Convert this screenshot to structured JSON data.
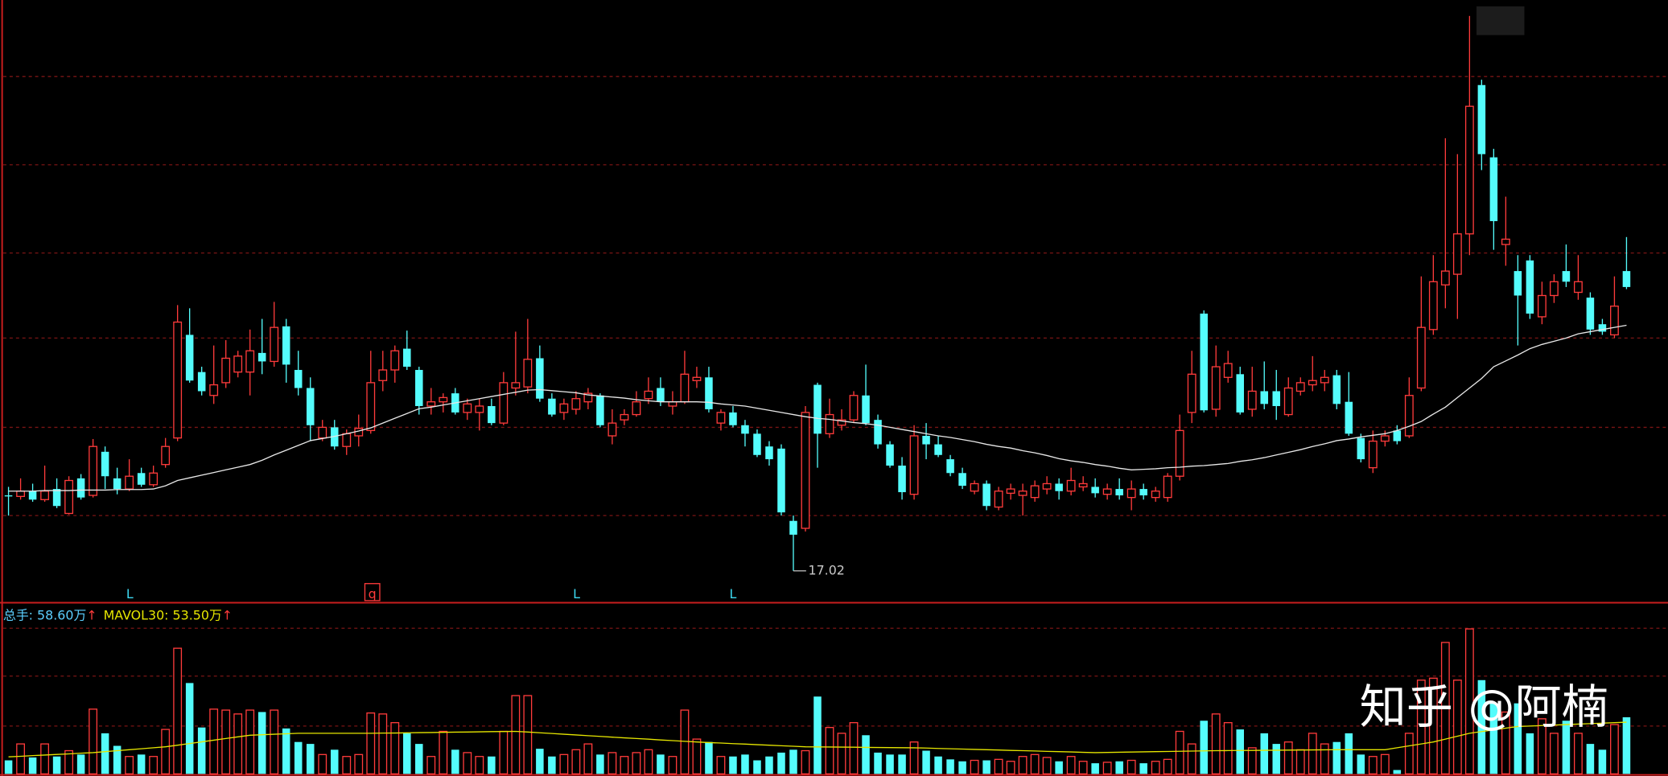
{
  "chart_data": {
    "type": "candlestick",
    "up_color": "#ff3b3b",
    "down_color": "#54fcfc",
    "ylim": [
      16.46,
      27.76
    ],
    "open": [
      18.44,
      18.42,
      18.52,
      18.36,
      18.56,
      18.1,
      18.76,
      18.44,
      19.26,
      18.76,
      18.56,
      18.86,
      18.64,
      19.02,
      19.52,
      21.46,
      20.76,
      20.32,
      20.56,
      20.76,
      20.76,
      21.12,
      20.96,
      21.62,
      20.8,
      20.46,
      19.52,
      19.72,
      19.36,
      19.56,
      19.66,
      20.6,
      20.8,
      21.2,
      20.8,
      20.12,
      20.2,
      20.36,
      20.0,
      20.0,
      20.12,
      19.8,
      20.46,
      20.48,
      21.02,
      20.26,
      20.0,
      20.06,
      20.2,
      20.32,
      19.56,
      19.86,
      19.96,
      20.26,
      20.46,
      20.12,
      20.2,
      20.6,
      20.66,
      19.8,
      20.0,
      19.76,
      19.6,
      19.36,
      19.32,
      17.96,
      17.82,
      20.52,
      19.6,
      19.76,
      19.86,
      20.32,
      19.86,
      19.4,
      19.0,
      18.46,
      19.56,
      19.4,
      19.12,
      18.86,
      18.52,
      18.66,
      18.22,
      18.48,
      18.44,
      18.4,
      18.56,
      18.66,
      18.52,
      18.6,
      18.6,
      18.46,
      18.56,
      18.4,
      18.56,
      18.4,
      18.4,
      18.8,
      20.0,
      21.86,
      20.06,
      20.66,
      20.72,
      20.06,
      20.4,
      20.4,
      19.96,
      20.4,
      20.52,
      20.56,
      20.7,
      20.2,
      19.52,
      18.96,
      19.46,
      19.66,
      19.56,
      20.46,
      21.56,
      22.4,
      22.6,
      23.36,
      26.16,
      24.8,
      23.16,
      22.66,
      22.86,
      21.8,
      22.2,
      22.66,
      22.26,
      22.16,
      21.66,
      21.46,
      22.66
    ],
    "high": [
      18.6,
      18.76,
      18.66,
      19.0,
      18.76,
      18.8,
      18.84,
      19.5,
      19.36,
      18.96,
      19.12,
      18.96,
      19.0,
      19.52,
      22.02,
      21.96,
      20.86,
      21.26,
      21.36,
      21.16,
      21.56,
      21.76,
      22.08,
      21.76,
      21.16,
      20.66,
      19.86,
      19.86,
      19.68,
      19.96,
      21.16,
      21.16,
      21.26,
      21.54,
      20.86,
      20.46,
      20.36,
      20.46,
      20.26,
      20.26,
      20.26,
      20.76,
      21.52,
      21.76,
      21.26,
      20.36,
      20.26,
      20.4,
      20.46,
      20.36,
      20.06,
      20.06,
      20.4,
      20.66,
      20.66,
      20.4,
      21.16,
      20.86,
      20.86,
      20.06,
      20.12,
      19.86,
      19.68,
      19.46,
      19.4,
      18.06,
      20.12,
      20.56,
      20.26,
      20.06,
      20.4,
      20.9,
      19.96,
      19.46,
      19.16,
      19.76,
      19.8,
      19.56,
      19.2,
      18.96,
      18.72,
      18.72,
      18.6,
      18.66,
      18.66,
      18.72,
      18.8,
      18.76,
      18.96,
      18.8,
      18.76,
      18.66,
      18.76,
      18.72,
      18.66,
      18.6,
      18.86,
      19.96,
      21.16,
      21.92,
      21.26,
      21.16,
      20.86,
      20.86,
      20.96,
      20.8,
      20.66,
      20.66,
      21.06,
      20.8,
      20.8,
      20.76,
      19.6,
      19.66,
      19.66,
      19.76,
      20.66,
      22.56,
      22.96,
      25.16,
      24.86,
      27.46,
      26.26,
      24.96,
      24.06,
      22.96,
      22.96,
      22.46,
      22.6,
      23.16,
      22.96,
      22.26,
      21.76,
      22.56,
      23.3
    ],
    "low": [
      18.06,
      18.36,
      18.32,
      18.32,
      18.2,
      18.08,
      18.36,
      18.4,
      18.56,
      18.46,
      18.52,
      18.6,
      18.6,
      18.96,
      19.46,
      20.56,
      20.32,
      20.16,
      20.46,
      20.66,
      20.32,
      20.72,
      20.86,
      20.56,
      20.32,
      19.46,
      19.46,
      19.3,
      19.2,
      19.36,
      19.6,
      20.4,
      20.56,
      20.8,
      19.96,
      19.96,
      20.0,
      19.96,
      19.86,
      19.66,
      19.76,
      19.76,
      20.32,
      20.36,
      20.2,
      19.92,
      19.86,
      19.96,
      20.06,
      19.72,
      19.4,
      19.76,
      19.92,
      20.16,
      20.12,
      19.96,
      20.16,
      20.46,
      20.0,
      19.66,
      19.72,
      19.36,
      19.16,
      19.0,
      18.06,
      17.02,
      17.76,
      18.96,
      19.52,
      19.66,
      19.8,
      19.76,
      19.32,
      18.96,
      18.36,
      18.36,
      19.12,
      19.16,
      18.8,
      18.56,
      18.46,
      18.16,
      18.16,
      18.36,
      18.06,
      18.32,
      18.46,
      18.36,
      18.44,
      18.52,
      18.4,
      18.36,
      18.36,
      18.16,
      18.36,
      18.32,
      18.32,
      18.72,
      19.8,
      20.0,
      19.92,
      20.56,
      19.96,
      19.92,
      20.06,
      19.86,
      19.92,
      20.32,
      20.4,
      20.4,
      20.06,
      19.56,
      19.06,
      18.86,
      19.36,
      19.4,
      19.52,
      20.4,
      21.46,
      21.96,
      21.76,
      22.96,
      24.56,
      23.06,
      22.76,
      21.26,
      21.76,
      21.66,
      22.06,
      22.36,
      22.12,
      21.46,
      21.46,
      21.4,
      22.32
    ],
    "close": [
      18.44,
      18.52,
      18.36,
      18.52,
      18.24,
      18.72,
      18.4,
      19.36,
      18.8,
      18.56,
      18.8,
      18.64,
      18.86,
      19.36,
      21.7,
      20.6,
      20.4,
      20.52,
      21.02,
      21.06,
      21.16,
      20.96,
      21.6,
      20.9,
      20.46,
      19.76,
      19.72,
      19.36,
      19.6,
      19.7,
      20.56,
      20.8,
      21.16,
      20.86,
      20.12,
      20.2,
      20.28,
      20.0,
      20.16,
      20.12,
      19.8,
      20.56,
      20.56,
      21.0,
      20.26,
      19.96,
      20.16,
      20.26,
      20.36,
      19.76,
      19.8,
      19.96,
      20.2,
      20.4,
      20.2,
      20.2,
      20.72,
      20.66,
      20.06,
      20.0,
      19.76,
      19.6,
      19.2,
      19.12,
      18.12,
      17.7,
      20.0,
      19.6,
      19.96,
      19.86,
      20.32,
      19.8,
      19.4,
      19.0,
      18.5,
      19.56,
      19.4,
      19.2,
      18.86,
      18.62,
      18.66,
      18.24,
      18.52,
      18.56,
      18.52,
      18.62,
      18.66,
      18.52,
      18.72,
      18.66,
      18.48,
      18.56,
      18.44,
      18.56,
      18.44,
      18.52,
      18.8,
      19.66,
      20.72,
      20.04,
      20.86,
      20.92,
      20.0,
      20.4,
      20.16,
      20.12,
      20.46,
      20.56,
      20.6,
      20.66,
      20.16,
      19.6,
      19.12,
      19.46,
      19.56,
      19.46,
      20.32,
      21.6,
      22.46,
      22.66,
      23.36,
      25.76,
      24.86,
      23.6,
      23.26,
      22.2,
      21.86,
      22.2,
      22.46,
      22.46,
      22.46,
      21.56,
      21.52,
      22.0,
      22.36
    ],
    "ma": {
      "color": "#e8e8e8",
      "values": [
        18.52,
        18.52,
        18.52,
        18.53,
        18.53,
        18.53,
        18.54,
        18.54,
        18.54,
        18.55,
        18.55,
        18.55,
        18.56,
        18.62,
        18.72,
        18.77,
        18.82,
        18.87,
        18.92,
        18.97,
        19.02,
        19.1,
        19.2,
        19.29,
        19.38,
        19.47,
        19.51,
        19.55,
        19.6,
        19.65,
        19.71,
        19.8,
        19.89,
        19.98,
        20.07,
        20.1,
        20.14,
        20.18,
        20.22,
        20.26,
        20.3,
        20.34,
        20.38,
        20.42,
        20.43,
        20.41,
        20.39,
        20.37,
        20.33,
        20.31,
        20.29,
        20.27,
        20.24,
        20.22,
        20.2,
        20.2,
        20.2,
        20.2,
        20.19,
        20.16,
        20.14,
        20.12,
        20.08,
        20.04,
        20.0,
        19.96,
        19.92,
        19.89,
        19.87,
        19.84,
        19.81,
        19.79,
        19.76,
        19.72,
        19.68,
        19.64,
        19.6,
        19.56,
        19.53,
        19.49,
        19.45,
        19.4,
        19.36,
        19.33,
        19.28,
        19.24,
        19.19,
        19.13,
        19.09,
        19.06,
        19.02,
        18.99,
        18.95,
        18.92,
        18.93,
        18.94,
        18.96,
        18.97,
        18.99,
        19.0,
        19.02,
        19.04,
        19.08,
        19.11,
        19.15,
        19.2,
        19.25,
        19.3,
        19.36,
        19.41,
        19.47,
        19.5,
        19.54,
        19.57,
        19.6,
        19.66,
        19.74,
        19.83,
        19.97,
        20.1,
        20.28,
        20.46,
        20.64,
        20.86,
        20.97,
        21.08,
        21.2,
        21.28,
        21.34,
        21.4,
        21.48,
        21.52,
        21.56,
        21.6,
        21.64
      ]
    },
    "volume": {
      "ylim": [
        0,
        151.8
      ],
      "values": [
        14,
        31,
        17,
        31,
        18,
        24,
        20,
        67,
        42,
        29,
        18,
        20,
        18,
        46,
        130,
        94,
        48,
        67,
        66,
        62,
        66,
        64,
        66,
        47,
        33,
        31,
        20,
        25,
        18,
        20,
        63,
        62,
        53,
        42,
        31,
        18,
        44,
        25,
        22,
        18,
        18,
        44,
        81,
        81,
        26,
        18,
        20,
        25,
        31,
        20,
        22,
        18,
        22,
        25,
        20,
        18,
        66,
        36,
        33,
        18,
        18,
        20,
        14,
        18,
        22,
        25,
        24,
        80,
        48,
        42,
        53,
        40,
        22,
        20,
        20,
        33,
        24,
        18,
        15,
        13,
        14,
        14,
        15,
        13,
        18,
        20,
        17,
        13,
        18,
        13,
        11,
        12,
        13,
        14,
        11,
        13,
        15,
        44,
        31,
        55,
        62,
        53,
        46,
        27,
        42,
        31,
        33,
        25,
        42,
        31,
        33,
        42,
        20,
        18,
        20,
        4,
        42,
        97,
        99,
        136,
        97,
        150,
        97,
        73,
        64,
        73,
        42,
        57,
        42,
        55,
        42,
        31,
        25,
        51,
        58.6
      ],
      "ma": {
        "color": "#e6e600",
        "values": [
          17.6,
          18.2,
          18.9,
          19.5,
          20.1,
          20.7,
          21.4,
          22.0,
          23.0,
          24.0,
          25.0,
          26.0,
          27.0,
          28.0,
          29.7,
          31.4,
          33.1,
          34.9,
          36.6,
          38.3,
          40.0,
          40.5,
          41.0,
          41.5,
          42.0,
          42,
          42,
          42,
          42,
          42,
          42,
          42.2,
          42.3,
          42.5,
          42.7,
          42.8,
          43.0,
          43.2,
          43.3,
          43.5,
          43.7,
          43.8,
          44.0,
          43.3,
          42.5,
          41.8,
          41.0,
          40.3,
          39.5,
          38.8,
          38.0,
          37.3,
          36.6,
          35.9,
          35.1,
          34.4,
          33.7,
          33.0,
          32.4,
          31.9,
          31.3,
          30.8,
          30.2,
          29.7,
          29.1,
          28.6,
          28.0,
          27.9,
          27.8,
          27.7,
          27.6,
          27.4,
          27.3,
          27.2,
          27.1,
          27.0,
          26.7,
          26.3,
          26.0,
          25.7,
          25.3,
          25.0,
          24.7,
          24.3,
          24.0,
          23.7,
          23.3,
          23.0,
          22.7,
          22.3,
          22.0,
          22.2,
          22.4,
          22.6,
          22.8,
          23.0,
          23.2,
          23.4,
          23.6,
          23.8,
          24.0,
          24.1,
          24.2,
          24.3,
          24.4,
          24.5,
          24.6,
          24.7,
          24.8,
          24.9,
          25.0,
          25,
          25,
          25,
          25,
          27,
          29,
          31,
          33,
          36,
          39,
          42,
          43.8,
          45.5,
          47.3,
          49.0,
          49.5,
          50.0,
          50.5,
          51.0,
          51.5,
          52.0,
          52.5,
          53.0,
          53.5
        ]
      },
      "label": "总手: 58.60万",
      "ma_label": "MAVOL30: 53.50万",
      "arrow": "↑"
    },
    "markers": [
      "L",
      "q",
      "L",
      "L"
    ],
    "watermark": "知乎 @阿楠"
  }
}
